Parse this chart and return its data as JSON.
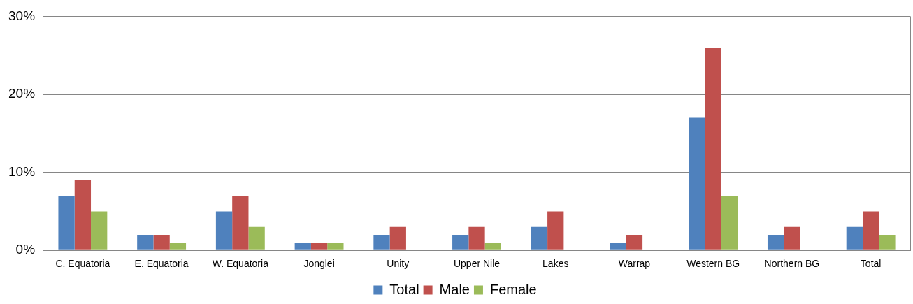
{
  "chart_data": {
    "type": "bar",
    "categories": [
      "C. Equatoria",
      "E. Equatoria",
      "W. Equatoria",
      "Jonglei",
      "Unity",
      "Upper Nile",
      "Lakes",
      "Warrap",
      "Western BG",
      "Northern BG",
      "Total"
    ],
    "series": [
      {
        "name": "Total",
        "color": "#4f81bd",
        "values": [
          7,
          2,
          5,
          1,
          2,
          2,
          3,
          1,
          17,
          2,
          3
        ]
      },
      {
        "name": "Male",
        "color": "#c0504d",
        "values": [
          9,
          2,
          7,
          1,
          3,
          3,
          5,
          2,
          26,
          3,
          5
        ]
      },
      {
        "name": "Female",
        "color": "#9bbb59",
        "values": [
          5,
          1,
          3,
          1,
          0,
          1,
          0,
          0,
          7,
          0,
          2
        ]
      }
    ],
    "ylim": [
      0,
      30
    ],
    "yticks": [
      {
        "value": 0,
        "label": "0%"
      },
      {
        "value": 10,
        "label": "10%"
      },
      {
        "value": 20,
        "label": "20%"
      },
      {
        "value": 30,
        "label": "30%"
      }
    ],
    "grid": "y",
    "legend": "bottom"
  }
}
